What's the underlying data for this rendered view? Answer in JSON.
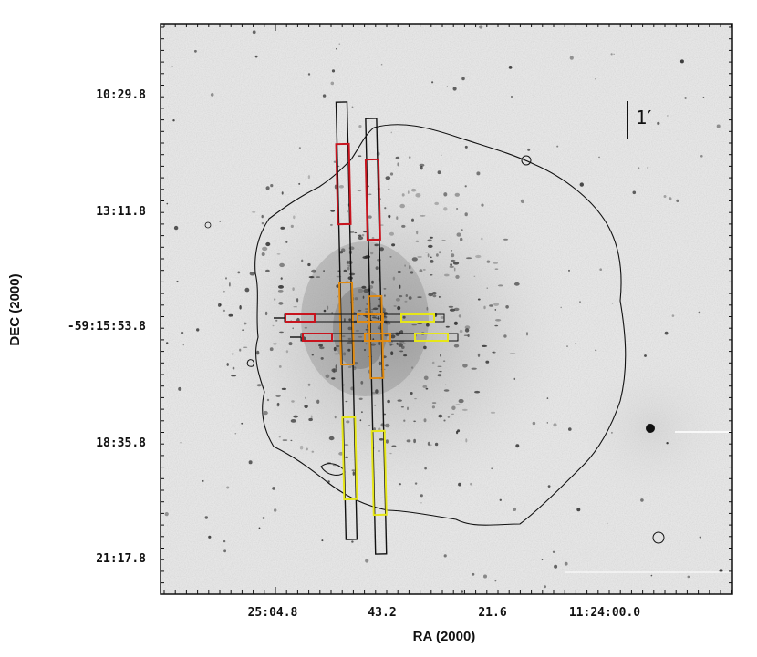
{
  "plot": {
    "xlabel": "RA (2000)",
    "ylabel": "DEC (2000)",
    "x_ticks": [
      "25:04.8",
      "43.2",
      "21.6",
      "11:24:00.0"
    ],
    "y_ticks": [
      "10:29.8",
      "13:11.8",
      "-59:15:53.8",
      "18:35.8",
      "21:17.8"
    ],
    "scale_bar_label": "1′"
  },
  "colors": {
    "background": "#e6e6e6",
    "contour": "#111111",
    "slit_black": "#111111",
    "slit_red": "#c8141e",
    "slit_yellow": "#e6e619",
    "slit_orange": "#e08a10"
  }
}
